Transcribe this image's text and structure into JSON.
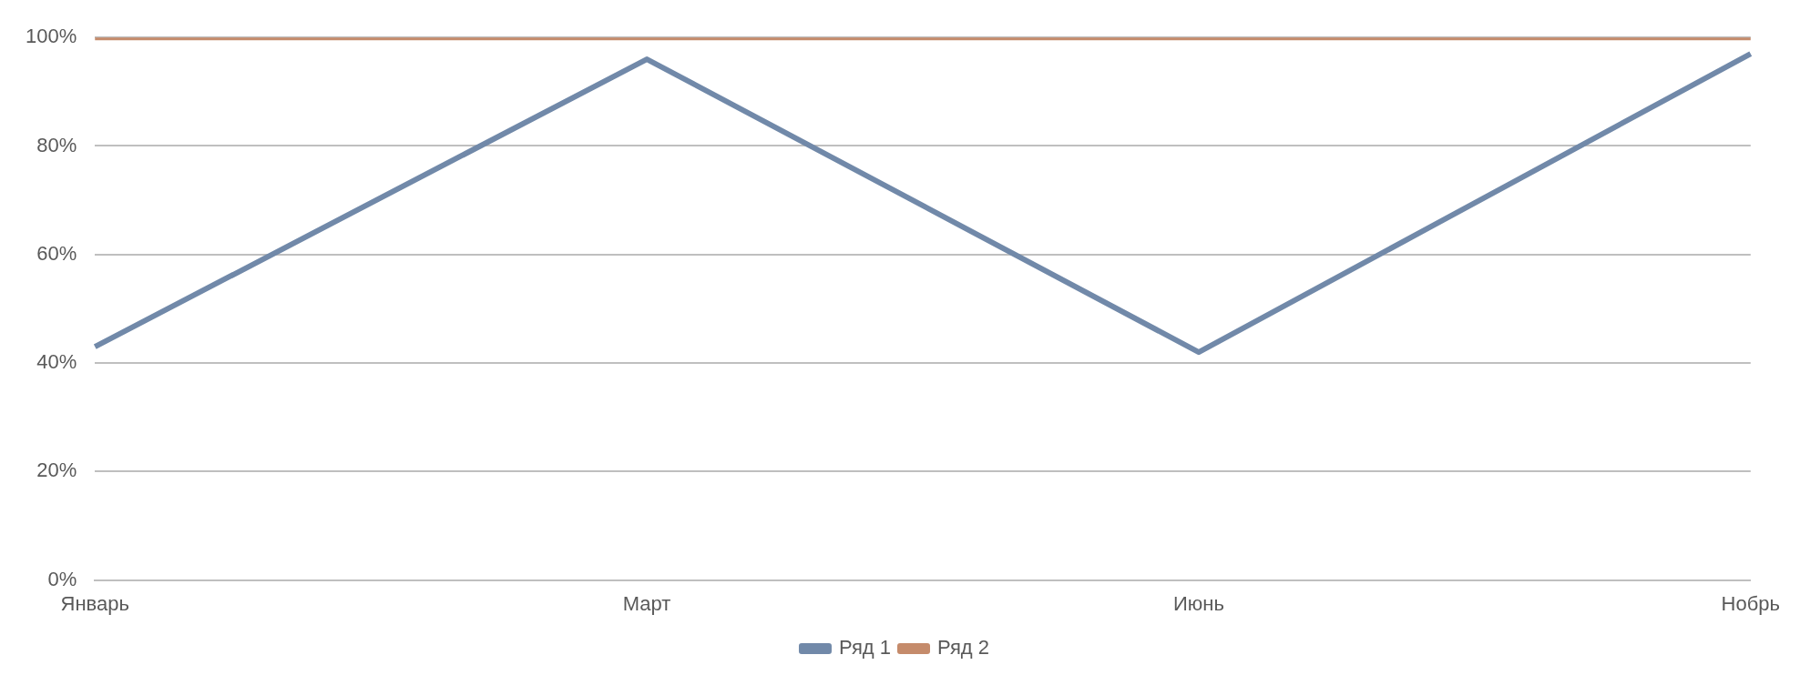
{
  "chart_data": {
    "type": "line",
    "categories": [
      "Январь",
      "Март",
      "Июнь",
      "Нобрь"
    ],
    "series": [
      {
        "name": "Ряд 1",
        "color": "#7189a9",
        "values": [
          43,
          96,
          42,
          97
        ]
      },
      {
        "name": "Ряд 2",
        "color": "#c58b6b",
        "values": [
          100,
          100,
          100,
          100
        ]
      }
    ],
    "ylim": [
      0,
      100
    ],
    "yticks": [
      {
        "value": 0,
        "label": "0%"
      },
      {
        "value": 20,
        "label": "20%"
      },
      {
        "value": 40,
        "label": "40%"
      },
      {
        "value": 60,
        "label": "60%"
      },
      {
        "value": 80,
        "label": "80%"
      },
      {
        "value": 100,
        "label": "100%"
      }
    ],
    "grid": "y",
    "legend": "bottom",
    "marker": "none",
    "line_style": "solid"
  }
}
